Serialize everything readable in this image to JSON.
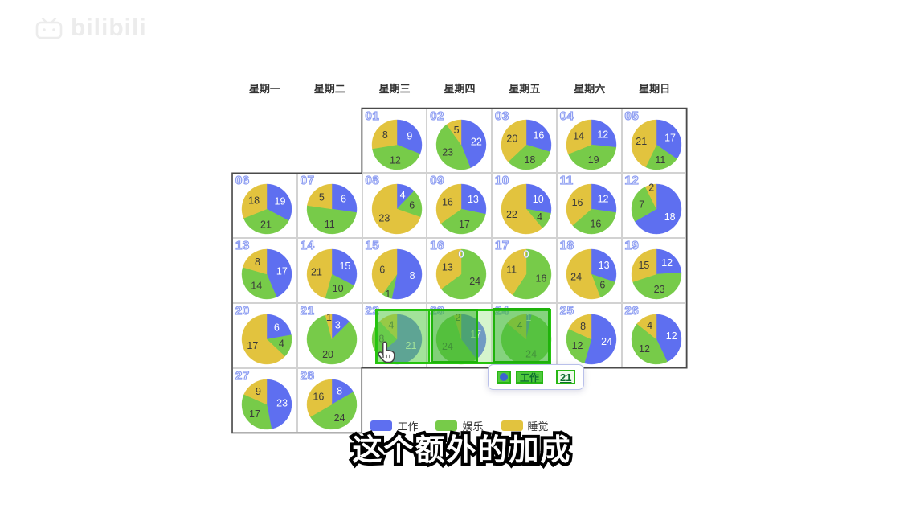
{
  "watermark": {
    "brand": "bilibili"
  },
  "calendar": {
    "weekdays": [
      "星期一",
      "星期二",
      "星期三",
      "星期四",
      "星期五",
      "星期六",
      "星期日"
    ]
  },
  "chart_data": {
    "type": "pie",
    "layout": "calendar-of-pies",
    "legend_position": "bottom",
    "day_label_color": "#8e9ef2",
    "series_meta": [
      {
        "key": "work",
        "name": "工作",
        "color": "#5e6ff0"
      },
      {
        "key": "fun",
        "name": "娱乐",
        "color": "#77cb49"
      },
      {
        "key": "sleep",
        "name": "睡觉",
        "color": "#e2c33e"
      }
    ],
    "days": [
      {
        "day": "01",
        "row": 1,
        "col": 3,
        "work": 9,
        "fun": 12,
        "sleep": 8
      },
      {
        "day": "02",
        "row": 1,
        "col": 4,
        "work": 22,
        "fun": 23,
        "sleep": 5
      },
      {
        "day": "03",
        "row": 1,
        "col": 5,
        "work": 16,
        "fun": 18,
        "sleep": 20
      },
      {
        "day": "04",
        "row": 1,
        "col": 6,
        "work": 12,
        "fun": 19,
        "sleep": 14
      },
      {
        "day": "05",
        "row": 1,
        "col": 7,
        "work": 17,
        "fun": 11,
        "sleep": 21
      },
      {
        "day": "06",
        "row": 2,
        "col": 1,
        "work": 19,
        "fun": 21,
        "sleep": 18
      },
      {
        "day": "07",
        "row": 2,
        "col": 2,
        "work": 6,
        "fun": 11,
        "sleep": 5
      },
      {
        "day": "08",
        "row": 2,
        "col": 3,
        "work": 4,
        "fun": 6,
        "sleep": 23
      },
      {
        "day": "09",
        "row": 2,
        "col": 4,
        "work": 13,
        "fun": 17,
        "sleep": 16
      },
      {
        "day": "10",
        "row": 2,
        "col": 5,
        "work": 10,
        "fun": 4,
        "sleep": 22
      },
      {
        "day": "11",
        "row": 2,
        "col": 6,
        "work": 12,
        "fun": 16,
        "sleep": 16
      },
      {
        "day": "12",
        "row": 2,
        "col": 7,
        "work": 18,
        "fun": 7,
        "sleep": 2
      },
      {
        "day": "13",
        "row": 3,
        "col": 1,
        "work": 17,
        "fun": 14,
        "sleep": 8
      },
      {
        "day": "14",
        "row": 3,
        "col": 2,
        "work": 15,
        "fun": 10,
        "sleep": 21
      },
      {
        "day": "15",
        "row": 3,
        "col": 3,
        "work": 8,
        "fun": 1,
        "sleep": 6
      },
      {
        "day": "16",
        "row": 3,
        "col": 4,
        "work": 0,
        "fun": 24,
        "sleep": 13
      },
      {
        "day": "17",
        "row": 3,
        "col": 5,
        "work": 0,
        "fun": 16,
        "sleep": 11
      },
      {
        "day": "18",
        "row": 3,
        "col": 6,
        "work": 13,
        "fun": 6,
        "sleep": 24
      },
      {
        "day": "19",
        "row": 3,
        "col": 7,
        "work": 12,
        "fun": 23,
        "sleep": 15
      },
      {
        "day": "20",
        "row": 4,
        "col": 1,
        "work": 6,
        "fun": 4,
        "sleep": 17
      },
      {
        "day": "21",
        "row": 4,
        "col": 2,
        "work": 3,
        "fun": 20,
        "sleep": 1
      },
      {
        "day": "22",
        "row": 4,
        "col": 3,
        "work": 21,
        "fun": 8,
        "sleep": 4
      },
      {
        "day": "23",
        "row": 4,
        "col": 4,
        "work": 17,
        "fun": 24,
        "sleep": 2
      },
      {
        "day": "24",
        "row": 4,
        "col": 5,
        "work": 1,
        "fun": 24,
        "sleep": 4
      },
      {
        "day": "25",
        "row": 4,
        "col": 6,
        "work": 24,
        "fun": 12,
        "sleep": 8
      },
      {
        "day": "26",
        "row": 4,
        "col": 7,
        "work": 12,
        "fun": 12,
        "sleep": 4
      },
      {
        "day": "27",
        "row": 5,
        "col": 1,
        "work": 23,
        "fun": 17,
        "sleep": 9
      },
      {
        "day": "28",
        "row": 5,
        "col": 2,
        "work": 8,
        "fun": 24,
        "sleep": 16
      }
    ]
  },
  "selection": {
    "highlighted_days": [
      "22",
      "23",
      "24"
    ],
    "highlight_color": "#25c40d"
  },
  "tooltip": {
    "label": "工作",
    "value": "21"
  },
  "subtitle": "这个额外的加成"
}
